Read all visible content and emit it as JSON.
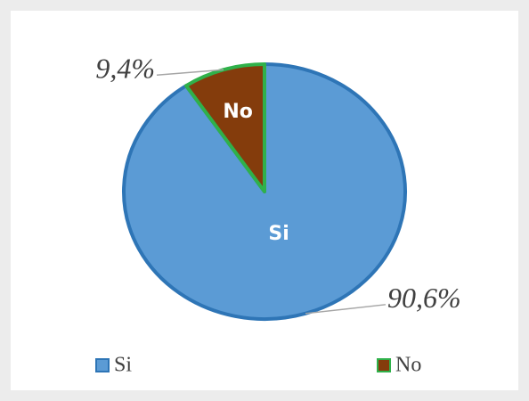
{
  "chart_data": {
    "type": "pie",
    "categories": [
      "Si",
      "No"
    ],
    "values": [
      90.6,
      9.4
    ],
    "value_labels": [
      "90,6%",
      "9,4%"
    ],
    "colors": [
      "#5b9bd5",
      "#843c0c"
    ],
    "edge_colors": [
      "#2e75b6",
      "#2fb14a"
    ],
    "legend": "bottom"
  }
}
